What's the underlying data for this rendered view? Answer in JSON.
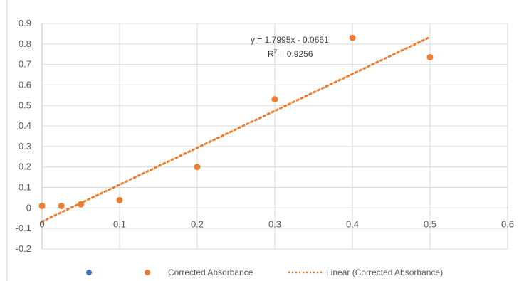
{
  "chart_data": {
    "type": "scatter",
    "title": "",
    "xlabel": "",
    "ylabel": "",
    "xlim": [
      0,
      0.6
    ],
    "ylim": [
      -0.2,
      0.9
    ],
    "x_ticks": [
      0,
      0.1,
      0.2,
      0.3,
      0.4,
      0.5,
      0.6
    ],
    "x_tick_labels": [
      "0",
      "0.1",
      "0.2",
      "0.3",
      "0.4",
      "0.5",
      "0.6"
    ],
    "y_ticks": [
      -0.2,
      -0.1,
      0,
      0.1,
      0.2,
      0.3,
      0.4,
      0.5,
      0.6,
      0.7,
      0.8,
      0.9
    ],
    "y_tick_labels": [
      "-0.2",
      "-0.1",
      "0",
      "0.1",
      "0.2",
      "0.3",
      "0.4",
      "0.5",
      "0.6",
      "0.7",
      "0.8",
      "0.9"
    ],
    "grid": true,
    "legend_position": "bottom",
    "series": [
      {
        "name": "Corrected Absorbance",
        "color": "#ED7D31",
        "points": [
          {
            "x": 0,
            "y": 0.01
          },
          {
            "x": 0.025,
            "y": 0.01
          },
          {
            "x": 0.05,
            "y": 0.018
          },
          {
            "x": 0.1,
            "y": 0.038
          },
          {
            "x": 0.2,
            "y": 0.2
          },
          {
            "x": 0.3,
            "y": 0.53
          },
          {
            "x": 0.4,
            "y": 0.83
          },
          {
            "x": 0.5,
            "y": 0.735
          }
        ]
      }
    ],
    "trendline": {
      "name": "Linear (Corrected Absorbance)",
      "color": "#ED7D31",
      "slope": 1.7995,
      "intercept": -0.0661,
      "x_range": [
        0,
        0.5
      ],
      "equation": "y = 1.7995x - 0.0661",
      "r2_prefix": "R",
      "r2_sup": "2",
      "r2_rest": " = 0.9256"
    },
    "legend_entries": [
      {
        "label": "",
        "color": "#4472C4",
        "kind": "marker"
      },
      {
        "label": "Corrected Absorbance",
        "color": "#ED7D31",
        "kind": "marker"
      },
      {
        "label": "Linear (Corrected Absorbance)",
        "color": "#ED7D31",
        "kind": "dotted-line"
      }
    ]
  }
}
